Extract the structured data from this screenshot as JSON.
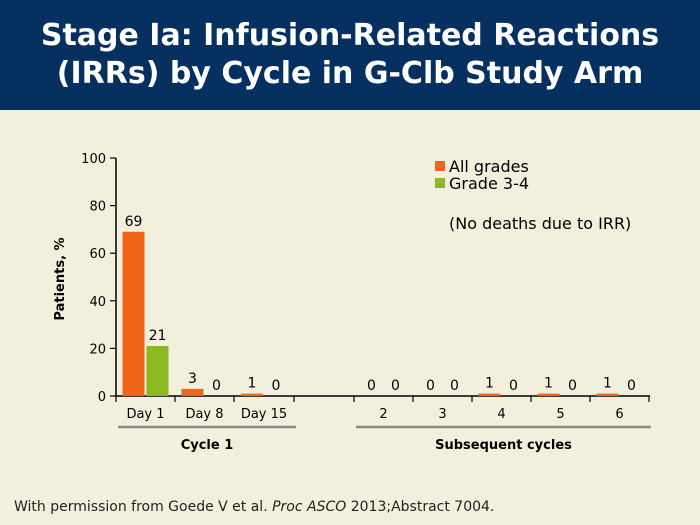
{
  "title": {
    "line1": "Stage Ia: Infusion-Related Reactions",
    "line2": "(IRRs) by Cycle in G-Clb Study Arm"
  },
  "colors": {
    "header_bg": "#06305f",
    "slide_bg": "#f2efdc",
    "all_grades": "#f0641a",
    "grade_3_4": "#8cb91f"
  },
  "chart_data": {
    "type": "bar",
    "ylabel": "Patients, %",
    "ylim": [
      0,
      100
    ],
    "yticks": [
      0,
      20,
      40,
      60,
      80,
      100
    ],
    "categories": [
      "Day 1",
      "Day 8",
      "Day 15",
      "2",
      "3",
      "4",
      "5",
      "6"
    ],
    "series": [
      {
        "name": "All grades",
        "values": [
          69,
          3,
          1,
          0,
          0,
          1,
          1,
          1
        ]
      },
      {
        "name": "Grade 3-4",
        "values": [
          21,
          0,
          0,
          0,
          0,
          0,
          0,
          0
        ]
      }
    ],
    "groups": [
      {
        "label": "Cycle 1",
        "start": 0,
        "end": 2
      },
      {
        "label": "Subsequent cycles",
        "start": 3,
        "end": 7
      }
    ],
    "annotation": "(No deaths due to IRR)",
    "legend_position": "top-right",
    "grid": false
  },
  "footer": {
    "prefix": "With permission from Goede V et al.",
    "journal": "Proc ASCO",
    "suffix": "2013;Abstract 7004."
  }
}
